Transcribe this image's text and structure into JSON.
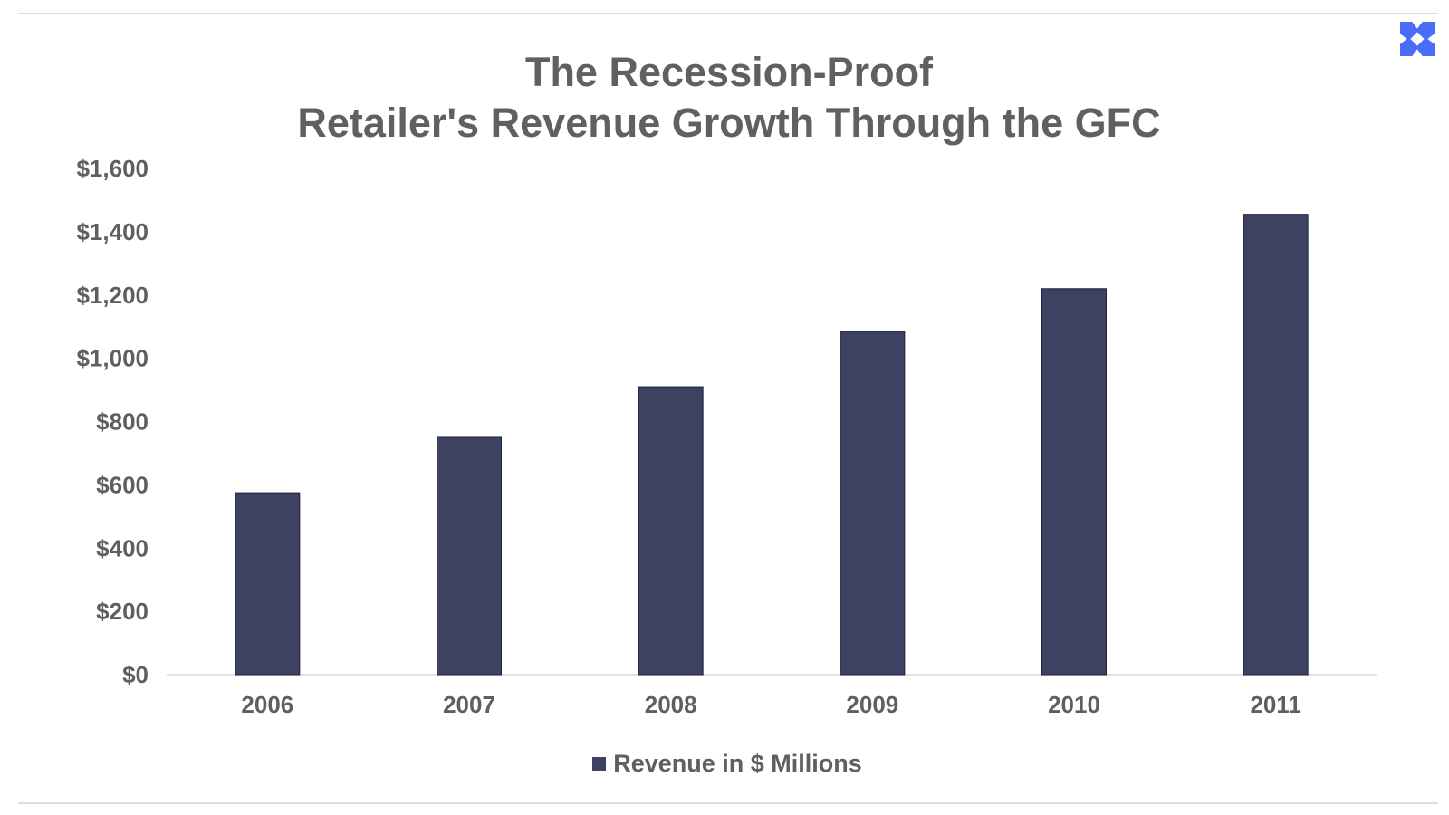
{
  "chart_data": {
    "type": "bar",
    "title_lines": [
      "The Recession-Proof",
      "Retailer's Revenue Growth Through the GFC"
    ],
    "categories": [
      "2006",
      "2007",
      "2008",
      "2009",
      "2010",
      "2011"
    ],
    "series": [
      {
        "name": "Revenue in $ Millions",
        "values": [
          575,
          750,
          910,
          1085,
          1220,
          1455
        ],
        "color": "#3d4260"
      }
    ],
    "y_ticks": [
      "$0",
      "$200",
      "$400",
      "$600",
      "$800",
      "$1,000",
      "$1,200",
      "$1,400",
      "$1,600"
    ],
    "ylim": [
      0,
      1600
    ],
    "xlabel": "",
    "ylabel": "",
    "grid": false,
    "legend_position": "bottom"
  },
  "brand": {
    "icon": "x-logo-icon",
    "color": "#4a6cf7"
  }
}
